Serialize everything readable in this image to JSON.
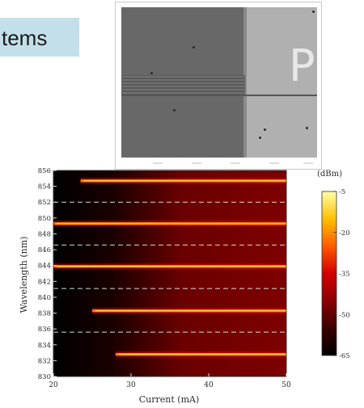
{
  "slide": {
    "banner_text": "tems"
  },
  "micrograph": {
    "label_text": "P"
  },
  "chart_data": {
    "type": "heatmap",
    "xlabel": "Current (mA)",
    "ylabel": "Wavelength (nm)",
    "xlim": [
      20,
      50
    ],
    "ylim": [
      830,
      856
    ],
    "x_ticks": [
      20,
      30,
      40,
      50
    ],
    "y_ticks": [
      830,
      832,
      834,
      836,
      838,
      840,
      842,
      844,
      846,
      848,
      850,
      852,
      854,
      856
    ],
    "colorbar": {
      "label": "(dBm)",
      "ticks": [
        -5,
        -20,
        -35,
        -50,
        -65
      ],
      "range": [
        -65,
        -5
      ],
      "colors": [
        "#000000",
        "#3a0000",
        "#8a0000",
        "#d10000",
        "#ff5a00",
        "#ffc000",
        "#ffffa8"
      ]
    },
    "background_power_dBm": -50,
    "modes": [
      {
        "wavelength_nm": 832.8,
        "start_current_mA": 28,
        "peak_power_dBm": -12
      },
      {
        "wavelength_nm": 838.3,
        "start_current_mA": 25,
        "peak_power_dBm": -12
      },
      {
        "wavelength_nm": 843.9,
        "start_current_mA": 20,
        "peak_power_dBm": -12
      },
      {
        "wavelength_nm": 849.3,
        "start_current_mA": 20,
        "peak_power_dBm": -12
      },
      {
        "wavelength_nm": 854.7,
        "start_current_mA": 23.5,
        "peak_power_dBm": -12
      }
    ],
    "dashed_lines_nm": [
      835.6,
      841.1,
      846.6,
      852.0
    ],
    "grid": false,
    "legend": "colorbar-right"
  }
}
